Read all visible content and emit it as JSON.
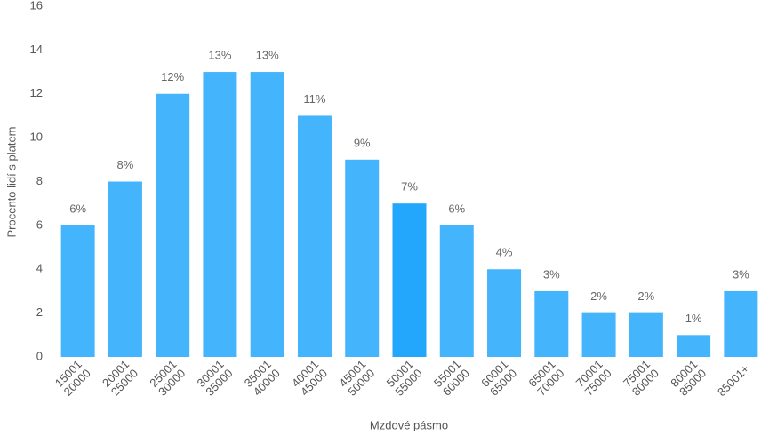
{
  "chart_data": {
    "type": "bar",
    "x_label": "Mzdové pásmo",
    "y_label": "Procento lidí s platem",
    "categories": [
      "15001 20000",
      "20001 25000",
      "25001 30000",
      "30001 35000",
      "35001 40000",
      "40001 45000",
      "45001 50000",
      "50001 55000",
      "55001 60000",
      "60001 65000",
      "65001 70000",
      "70001 75000",
      "75001 80000",
      "80001 85000",
      "85001+"
    ],
    "values": [
      6,
      8,
      12,
      13,
      13,
      11,
      9,
      7,
      6,
      4,
      3,
      2,
      2,
      1,
      3
    ],
    "value_labels": [
      "6%",
      "8%",
      "12%",
      "13%",
      "13%",
      "11%",
      "9%",
      "7%",
      "6%",
      "4%",
      "3%",
      "2%",
      "2%",
      "1%",
      "3%"
    ],
    "colors": [
      "#44b4fd",
      "#44b4fd",
      "#44b4fd",
      "#44b4fd",
      "#44b4fd",
      "#44b4fd",
      "#44b4fd",
      "#22a7fd",
      "#44b4fd",
      "#44b4fd",
      "#44b4fd",
      "#44b4fd",
      "#44b4fd",
      "#44b4fd",
      "#44b4fd"
    ],
    "ylim": [
      0,
      16
    ],
    "yticks": [
      0,
      2,
      4,
      6,
      8,
      10,
      12,
      14,
      16
    ],
    "grid": false
  }
}
